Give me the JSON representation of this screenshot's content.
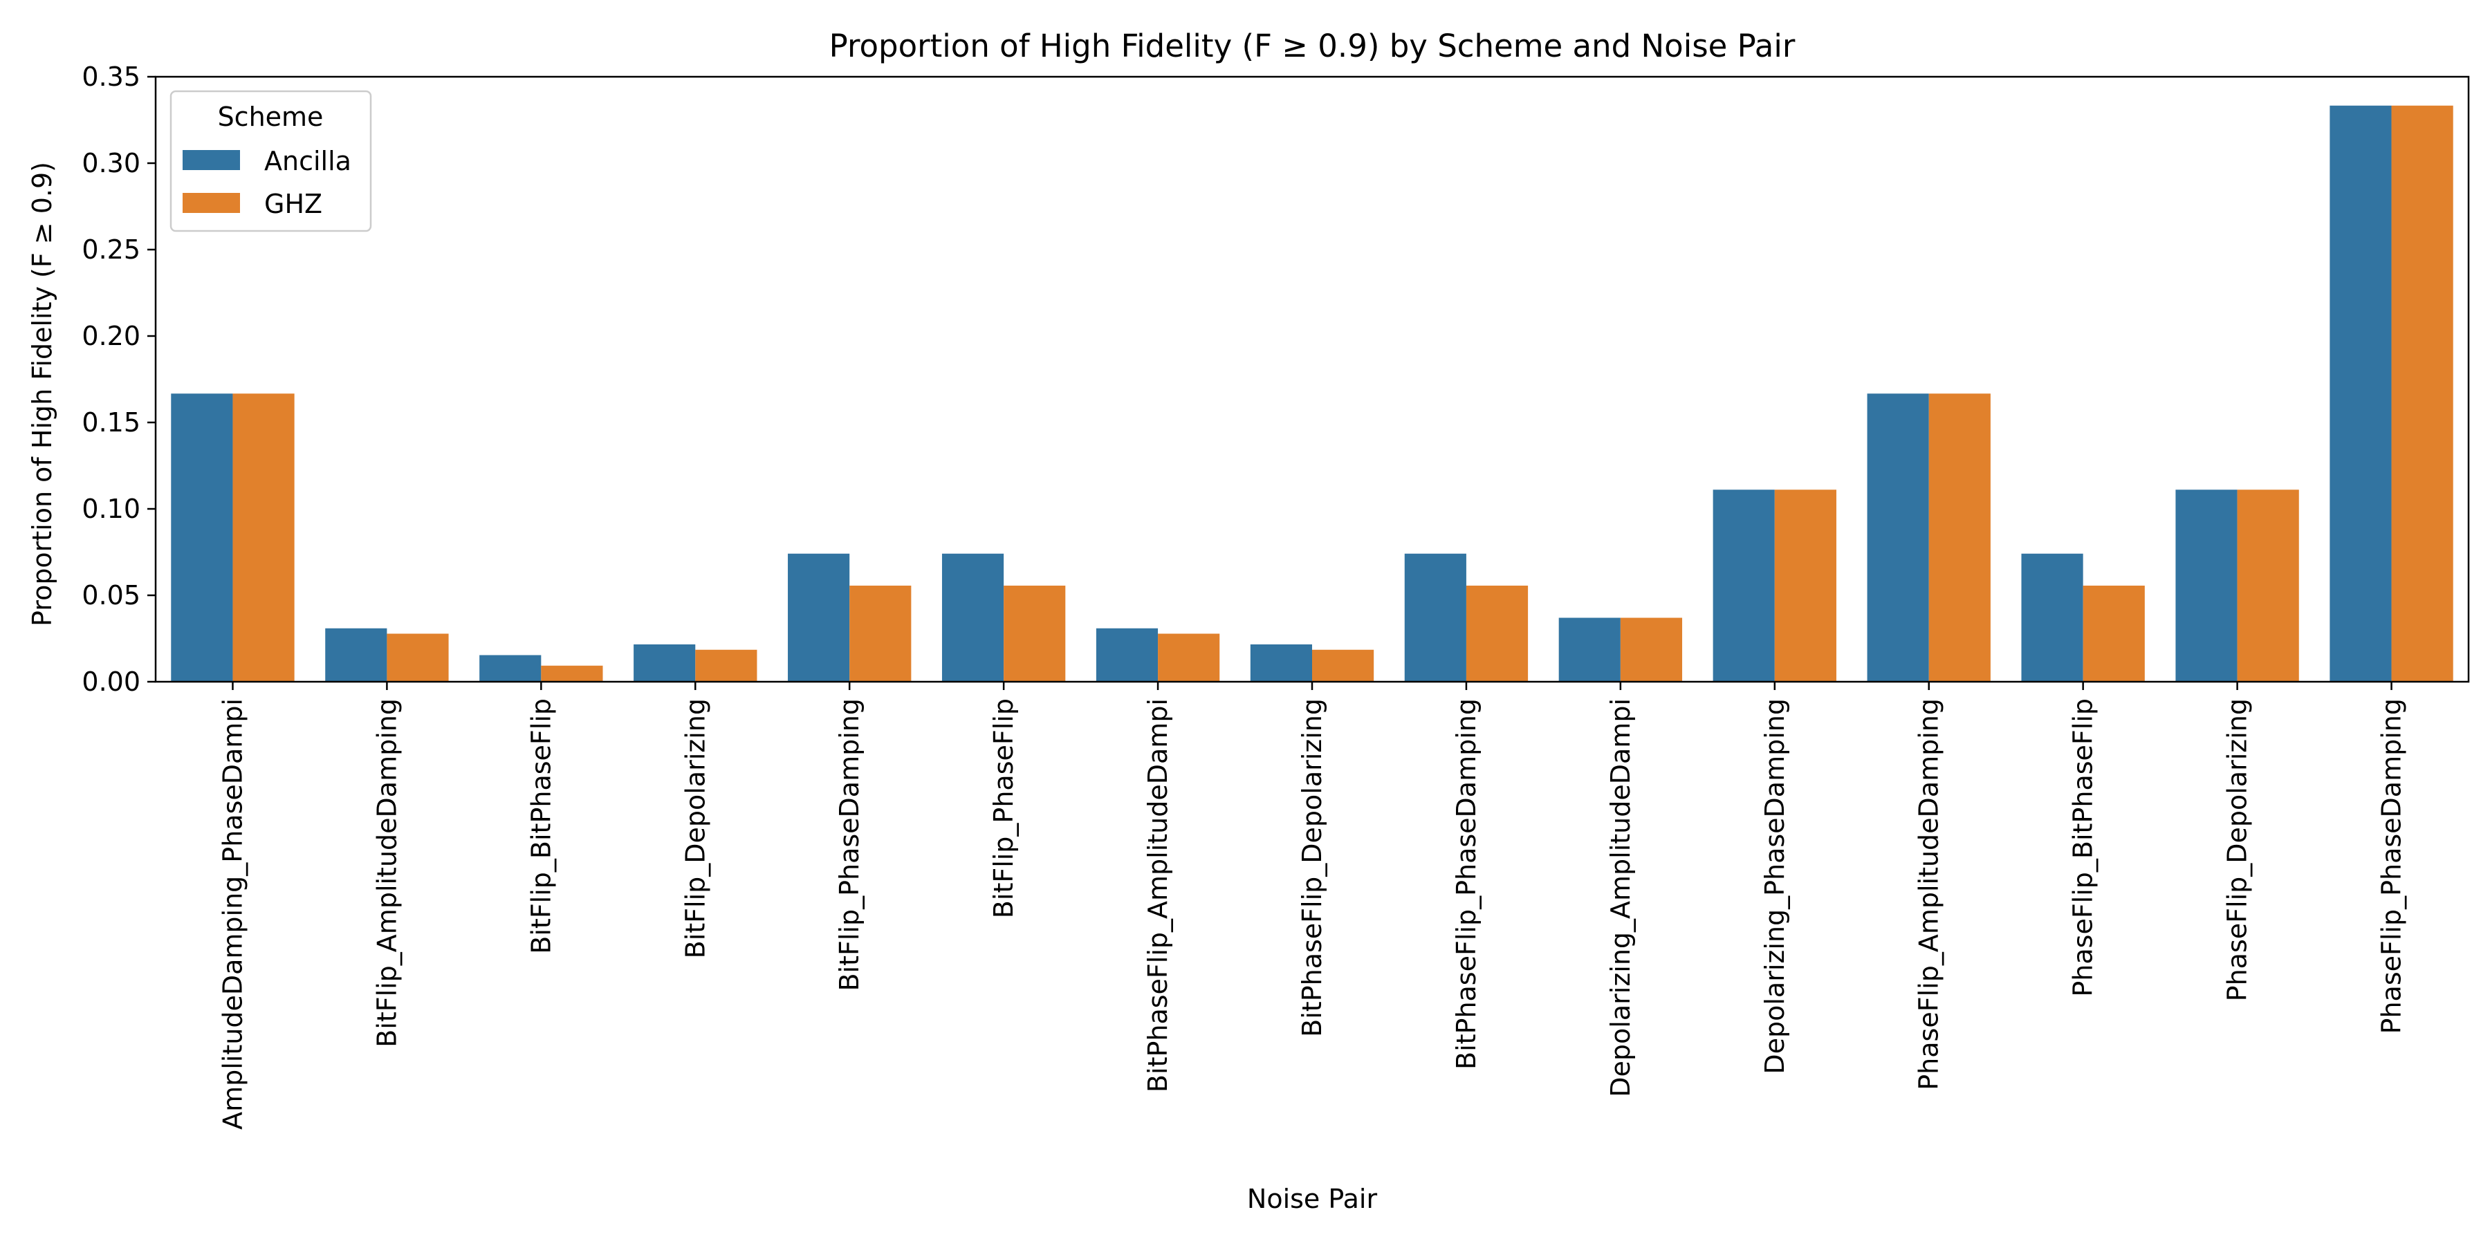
{
  "chart_data": {
    "type": "bar",
    "title": "Proportion of High Fidelity (F ≥ 0.9) by Scheme and Noise Pair",
    "xlabel": "Noise Pair",
    "ylabel": "Proportion of High Fidelity (F ≥ 0.9)",
    "ylim": [
      0,
      0.35
    ],
    "yticks": [
      "0.00",
      "0.05",
      "0.10",
      "0.15",
      "0.20",
      "0.25",
      "0.30",
      "0.35"
    ],
    "grid": false,
    "legend": {
      "title": "Scheme",
      "placement": "top-left"
    },
    "categories": [
      "AmplitudeDamping_PhaseDampi",
      "BitFlip_AmplitudeDamping",
      "BitFlip_BitPhaseFlip",
      "BitFlip_Depolarizing",
      "BitFlip_PhaseDamping",
      "BitFlip_PhaseFlip",
      "BitPhaseFlip_AmplitudeDampi",
      "BitPhaseFlip_Depolarizing",
      "BitPhaseFlip_PhaseDamping",
      "Depolarizing_AmplitudeDampi",
      "Depolarizing_PhaseDamping",
      "PhaseFlip_AmplitudeDamping",
      "PhaseFlip_BitPhaseFlip",
      "PhaseFlip_Depolarizing",
      "PhaseFlip_PhaseDamping"
    ],
    "series": [
      {
        "name": "Ancilla",
        "color": "#3274a1",
        "values": [
          0.1667,
          0.0309,
          0.0154,
          0.0216,
          0.0741,
          0.0741,
          0.0309,
          0.0216,
          0.0741,
          0.037,
          0.1111,
          0.1667,
          0.0741,
          0.1111,
          0.3333
        ]
      },
      {
        "name": "GHZ",
        "color": "#e1812c",
        "values": [
          0.1667,
          0.0278,
          0.0093,
          0.0185,
          0.0556,
          0.0556,
          0.0278,
          0.0185,
          0.0556,
          0.037,
          0.1111,
          0.1667,
          0.0556,
          0.1111,
          0.3333
        ]
      }
    ]
  }
}
